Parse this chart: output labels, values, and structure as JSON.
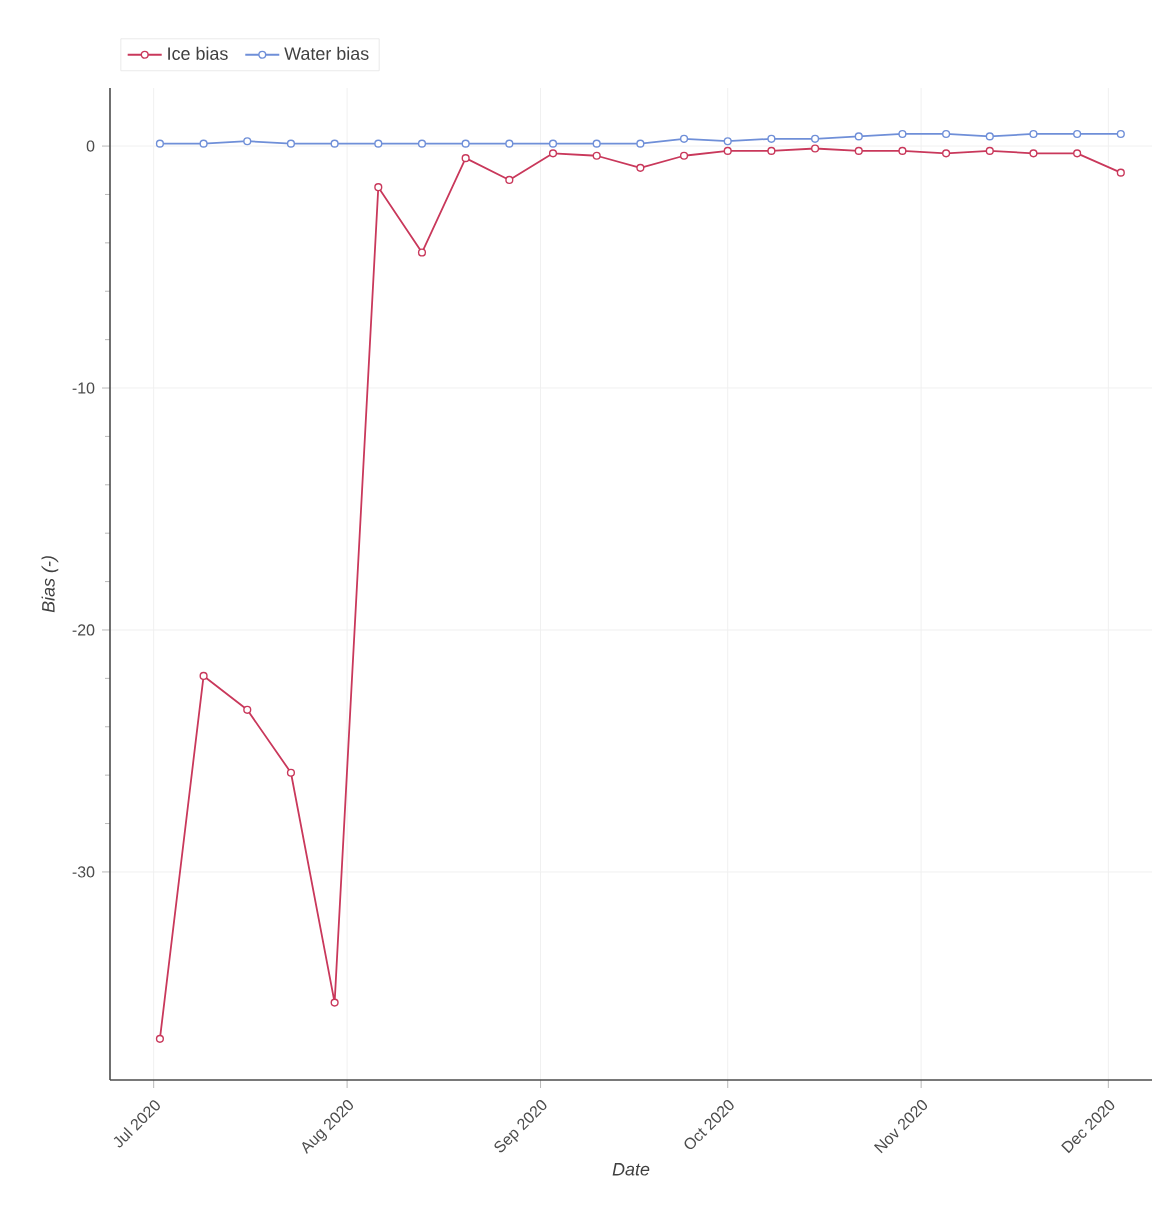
{
  "chart_data": {
    "type": "line",
    "xlabel": "Date",
    "ylabel": "Bias (-)",
    "x": [
      "2020-07-02",
      "2020-07-09",
      "2020-07-16",
      "2020-07-23",
      "2020-07-30",
      "2020-08-06",
      "2020-08-13",
      "2020-08-20",
      "2020-08-27",
      "2020-09-03",
      "2020-09-10",
      "2020-09-17",
      "2020-09-24",
      "2020-10-01",
      "2020-10-08",
      "2020-10-15",
      "2020-10-22",
      "2020-10-29",
      "2020-11-05",
      "2020-11-12",
      "2020-11-19",
      "2020-11-26",
      "2020-12-03"
    ],
    "series": [
      {
        "name": "Ice bias",
        "color": "#c9385b",
        "values": [
          -36.9,
          -21.9,
          -23.3,
          -25.9,
          -35.4,
          -1.7,
          -4.4,
          -0.5,
          -1.4,
          -0.3,
          -0.4,
          -0.9,
          -0.4,
          -0.2,
          -0.2,
          -0.1,
          -0.2,
          -0.2,
          -0.3,
          -0.2,
          -0.3,
          -0.3,
          -1.1
        ]
      },
      {
        "name": "Water bias",
        "color": "#6f8fd8",
        "values": [
          0.1,
          0.1,
          0.2,
          0.1,
          0.1,
          0.1,
          0.1,
          0.1,
          0.1,
          0.1,
          0.1,
          0.1,
          0.3,
          0.2,
          0.3,
          0.3,
          0.4,
          0.5,
          0.5,
          0.4,
          0.5,
          0.5,
          0.5
        ]
      }
    ],
    "xlim": [
      "2020-06-24",
      "2020-12-08"
    ],
    "xticks": [
      {
        "value": "2020-07-01",
        "label": "Jul 2020"
      },
      {
        "value": "2020-08-01",
        "label": "Aug 2020"
      },
      {
        "value": "2020-09-01",
        "label": "Sep 2020"
      },
      {
        "value": "2020-10-01",
        "label": "Oct 2020"
      },
      {
        "value": "2020-11-01",
        "label": "Nov 2020"
      },
      {
        "value": "2020-12-01",
        "label": "Dec 2020"
      }
    ],
    "ylim": [
      -38.6,
      2.4
    ],
    "yticks": [
      -30,
      -20,
      -10,
      0
    ],
    "grid": true,
    "legend": "top left",
    "marker": "circle",
    "line_style": "solid"
  }
}
